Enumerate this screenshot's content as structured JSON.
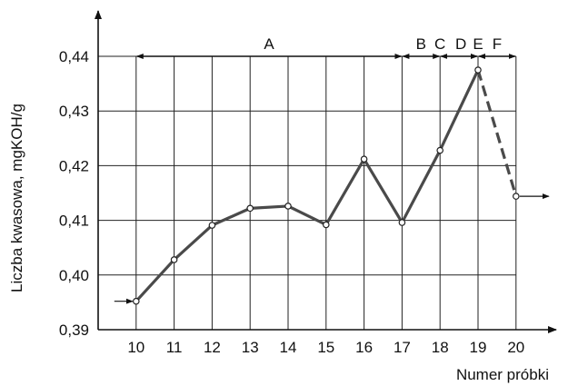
{
  "chart_data": {
    "type": "line",
    "title": "",
    "xlabel": "Numer próbki",
    "ylabel": "Liczba kwasowa, mgKOH/g",
    "xlim": [
      9,
      20
    ],
    "ylim": [
      0.39,
      0.44
    ],
    "grid": true,
    "x_ticks": [
      "10",
      "11",
      "12",
      "13",
      "14",
      "15",
      "16",
      "17",
      "18",
      "19",
      "20"
    ],
    "y_ticks": [
      "0,39",
      "0,40",
      "0,41",
      "0,42",
      "0,43",
      "0,44"
    ],
    "series": [
      {
        "style": "solid",
        "x": [
          10,
          11,
          12,
          13,
          14,
          15,
          16,
          17,
          18,
          19
        ],
        "y": [
          0.3952,
          0.4028,
          0.4091,
          0.4122,
          0.4126,
          0.4092,
          0.4212,
          0.4096,
          0.4228,
          0.4375
        ]
      },
      {
        "style": "dashed",
        "x": [
          19,
          20
        ],
        "y": [
          0.4375,
          0.4144
        ]
      }
    ],
    "regions": [
      {
        "label": "A",
        "from": 10,
        "to": 17
      },
      {
        "label": "B",
        "from": 17,
        "to": 18
      },
      {
        "label": "C",
        "from": 18,
        "to": 19
      },
      {
        "label": "D",
        "from": 18,
        "to": 19
      },
      {
        "label": "E",
        "from": 19,
        "to": 19
      },
      {
        "label": "F",
        "from": 19,
        "to": 20
      }
    ],
    "region_labels": {
      "A": "A",
      "B": "B",
      "C": "C",
      "D": "D",
      "E": "E",
      "F": "F"
    },
    "colors": {
      "line": "#4a4a4a",
      "grid": "#222222"
    }
  }
}
